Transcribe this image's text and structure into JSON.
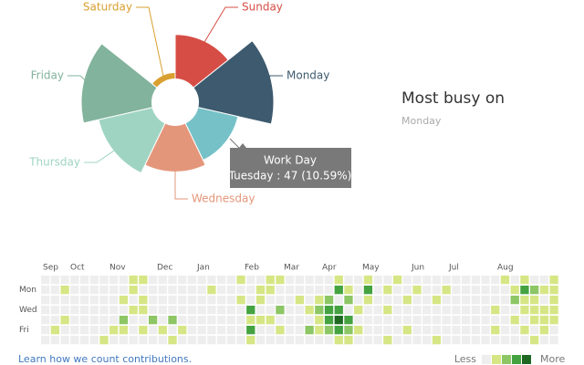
{
  "chart_data": [
    {
      "type": "polar-area",
      "categories": [
        "Sunday",
        "Monday",
        "Tuesday",
        "Wednesday",
        "Thursday",
        "Friday",
        "Saturday"
      ],
      "values": [
        52,
        110,
        47,
        55,
        70,
        100,
        10
      ],
      "colors": [
        "#d64d45",
        "#3d5a6e",
        "#76c1c8",
        "#e4967a",
        "#9fd4c2",
        "#82b39c",
        "#d9a030"
      ],
      "tooltip": {
        "title": "Work Day",
        "text": "Tuesday : 47 (10.59%)"
      }
    },
    {
      "type": "heatmap",
      "months": [
        "Sep",
        "Oct",
        "Nov",
        "Dec",
        "Jan",
        "Feb",
        "Mar",
        "Apr",
        "May",
        "Jun",
        "Jul",
        "Aug"
      ],
      "days": [
        "Mon",
        "Wed",
        "Fri"
      ],
      "colors": [
        "#eeeeee",
        "#d6e685",
        "#8cc665",
        "#44a340",
        "#1e6823"
      ],
      "legend": {
        "less": "Less",
        "more": "More"
      },
      "weeks": [
        [
          0,
          0,
          0,
          0,
          0,
          0,
          0
        ],
        [
          0,
          0,
          0,
          0,
          0,
          1,
          0
        ],
        [
          0,
          1,
          0,
          0,
          1,
          0,
          0
        ],
        [
          0,
          0,
          0,
          0,
          0,
          0,
          0
        ],
        [
          0,
          0,
          0,
          0,
          0,
          0,
          0
        ],
        [
          0,
          0,
          0,
          0,
          0,
          0,
          0
        ],
        [
          0,
          0,
          0,
          0,
          0,
          0,
          1
        ],
        [
          0,
          0,
          0,
          0,
          0,
          1,
          0
        ],
        [
          0,
          0,
          1,
          0,
          2,
          1,
          0
        ],
        [
          1,
          1,
          0,
          1,
          0,
          0,
          0
        ],
        [
          1,
          0,
          1,
          1,
          0,
          1,
          0
        ],
        [
          0,
          0,
          0,
          0,
          2,
          0,
          0
        ],
        [
          0,
          0,
          0,
          0,
          0,
          1,
          0
        ],
        [
          0,
          0,
          0,
          0,
          2,
          0,
          1
        ],
        [
          0,
          0,
          0,
          0,
          0,
          1,
          0
        ],
        [
          0,
          0,
          0,
          0,
          0,
          0,
          0
        ],
        [
          0,
          0,
          0,
          0,
          0,
          0,
          0
        ],
        [
          0,
          1,
          0,
          0,
          0,
          0,
          0
        ],
        [
          0,
          0,
          0,
          0,
          0,
          0,
          0
        ],
        [
          0,
          0,
          0,
          0,
          0,
          0,
          0
        ],
        [
          1,
          0,
          1,
          0,
          0,
          0,
          0
        ],
        [
          0,
          0,
          0,
          3,
          1,
          3,
          1
        ],
        [
          0,
          1,
          1,
          0,
          1,
          0,
          0
        ],
        [
          1,
          1,
          0,
          0,
          1,
          0,
          0
        ],
        [
          1,
          0,
          0,
          2,
          0,
          1,
          0
        ],
        [
          0,
          0,
          0,
          0,
          0,
          0,
          0
        ],
        [
          0,
          0,
          1,
          0,
          0,
          0,
          0
        ],
        [
          0,
          0,
          0,
          1,
          0,
          2,
          0
        ],
        [
          0,
          0,
          1,
          2,
          1,
          1,
          0
        ],
        [
          0,
          0,
          2,
          3,
          3,
          2,
          0
        ],
        [
          1,
          3,
          0,
          3,
          4,
          3,
          1
        ],
        [
          0,
          1,
          2,
          0,
          3,
          2,
          1
        ],
        [
          0,
          0,
          0,
          1,
          0,
          1,
          0
        ],
        [
          1,
          3,
          1,
          0,
          0,
          0,
          0
        ],
        [
          0,
          0,
          0,
          0,
          0,
          0,
          0
        ],
        [
          0,
          1,
          0,
          1,
          0,
          0,
          1
        ],
        [
          1,
          0,
          0,
          0,
          0,
          0,
          0
        ],
        [
          0,
          0,
          1,
          0,
          0,
          1,
          0
        ],
        [
          0,
          1,
          0,
          0,
          0,
          0,
          0
        ],
        [
          0,
          0,
          0,
          0,
          0,
          0,
          0
        ],
        [
          0,
          0,
          1,
          0,
          0,
          0,
          1
        ],
        [
          0,
          1,
          0,
          0,
          0,
          0,
          0
        ],
        [
          0,
          0,
          0,
          0,
          0,
          0,
          0
        ],
        [
          0,
          0,
          0,
          0,
          0,
          0,
          0
        ],
        [
          0,
          0,
          0,
          0,
          0,
          0,
          0
        ],
        [
          0,
          0,
          0,
          0,
          0,
          0,
          0
        ],
        [
          0,
          0,
          0,
          1,
          0,
          1,
          0
        ],
        [
          1,
          0,
          0,
          0,
          0,
          0,
          0
        ],
        [
          0,
          1,
          2,
          0,
          1,
          0,
          0
        ],
        [
          1,
          3,
          1,
          1,
          0,
          1,
          0
        ],
        [
          0,
          2,
          1,
          1,
          1,
          0,
          1
        ],
        [
          0,
          1,
          0,
          1,
          1,
          1,
          0
        ],
        [
          1,
          1,
          1,
          1,
          1,
          0,
          0
        ]
      ]
    }
  ],
  "summary": {
    "heading": "Most busy on",
    "day": "Monday"
  },
  "link": "Learn how we count contributions."
}
